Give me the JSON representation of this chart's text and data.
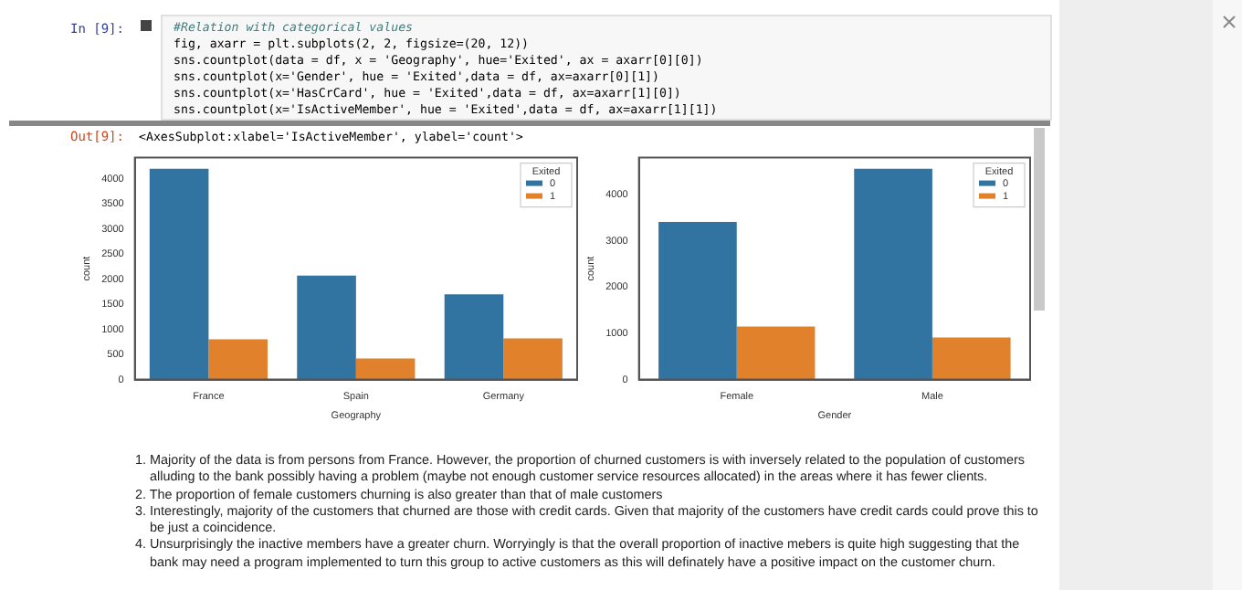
{
  "chart_data": [
    {
      "type": "other",
      "title": "In [9]:",
      "annotations": [
        "#Relation with categorical values",
        "fig, axarr = plt.subplots(2, 2, figsize=(20, 12))",
        "sns.countplot(data = df, x = 'Geography', hue='Exited', ax = axarr[0][0])",
        "sns.countplot(x='Gender', hue = 'Exited',data = df, ax=axarr[0][1])",
        "sns.countplot(x='HasCrCard', hue = 'Exited',data = df, ax=axarr[1][0])",
        "sns.countplot(x='IsActiveMember', hue = 'Exited',data = df, ax=axarr[1][1])",
        "Out[9]:",
        "<AxesSubplot:xlabel='IsActiveMember', ylabel='count'>"
      ]
    },
    {
      "type": "bar",
      "xlabel": "Geography",
      "ylabel": "count",
      "legend_title": "Exited",
      "legend": "top right",
      "categories": [
        "France",
        "Spain",
        "Germany"
      ],
      "ylim": [
        0,
        4420
      ],
      "yticks": [
        0,
        500,
        1000,
        1500,
        2000,
        2500,
        3000,
        3500,
        4000
      ],
      "series": [
        {
          "name": "0",
          "color": "#3274a1",
          "values": [
            4200,
            2070,
            1700
          ]
        },
        {
          "name": "1",
          "color": "#e1812c",
          "values": [
            800,
            420,
            820
          ]
        }
      ]
    },
    {
      "type": "bar",
      "xlabel": "Gender",
      "ylabel": "count",
      "legend_title": "Exited",
      "legend": "top right",
      "categories": [
        "Female",
        "Male"
      ],
      "ylim": [
        0,
        4800
      ],
      "yticks": [
        0,
        1000,
        2000,
        3000,
        4000
      ],
      "series": [
        {
          "name": "0",
          "color": "#3274a1",
          "values": [
            3410,
            4560
          ]
        },
        {
          "name": "1",
          "color": "#e1812c",
          "values": [
            1150,
            910
          ]
        }
      ]
    },
    {
      "type": "other",
      "annotations": [
        "1. Majority of the data is from persons from France. However, the proportion of churned customers is with inversely related to the population of customers alluding to the bank possibly having a problem (maybe not enough customer service resources allocated) in the areas where it has fewer clients.",
        "2. The proportion of female customers churning is also greater than that of male customers",
        "3. Interestingly, majority of the customers that churned are those with credit cards. Given that majority of the customers have credit cards could prove this to be just a coincidence.",
        "4. Unsurprisingly the inactive members have a greater churn. Worryingly is that the overall proportion of inactive mebers is quite high suggesting that the bank may need a program implemented to turn this group to active customers as this will definately have a positive impact on the customer churn."
      ]
    }
  ]
}
